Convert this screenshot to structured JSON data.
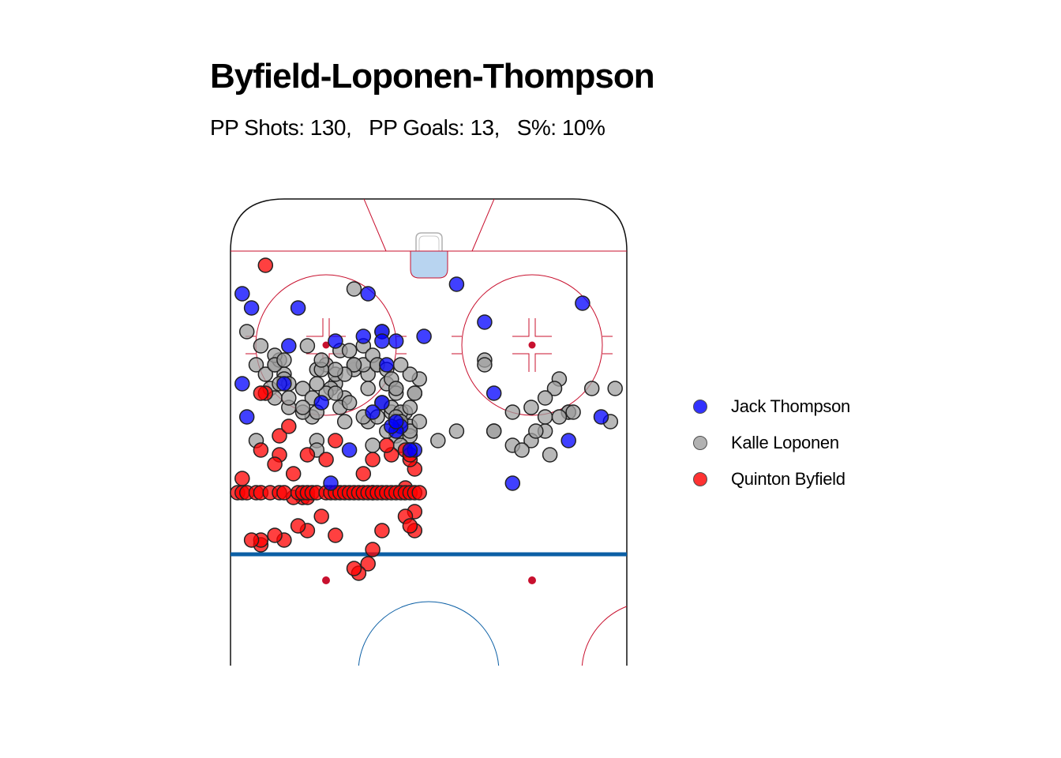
{
  "chart_data": {
    "type": "scatter",
    "title": "Byfield-Loponen-Thompson",
    "subtitle": "PP Shots: 130,   PP Goals: 13,   S%: 10%",
    "legend_position": "right",
    "grid": false,
    "series": [
      {
        "name": "Jack Thompson",
        "color": "#0000ff",
        "points": [
          [
            -27,
            67
          ],
          [
            -82,
            6
          ],
          [
            -28,
            -12
          ],
          [
            -38,
            -12
          ],
          [
            17,
            42
          ],
          [
            62,
            3
          ],
          [
            -7,
            -19
          ],
          [
            41,
            19
          ],
          [
            -43,
            -7
          ],
          [
            55,
            -2
          ],
          [
            43,
            18
          ],
          [
            33,
            -11
          ],
          [
            -10,
            -17
          ],
          [
            -14,
            -18
          ],
          [
            -40,
            -9
          ],
          [
            38,
            17
          ],
          [
            -30,
            -20
          ],
          [
            5,
            52
          ],
          [
            69,
            0
          ],
          [
            75,
            -19
          ],
          [
            49,
            10
          ],
          [
            60,
            -1
          ],
          [
            -1,
            -18
          ],
          [
            -9,
            -24
          ],
          [
            -10,
            -19
          ],
          [
            -23,
            -32
          ],
          [
            -77,
            -25
          ],
          [
            -10,
            -32
          ],
          [
            -39,
            -35
          ],
          [
            62,
            -30
          ],
          [
            -80,
            -12
          ],
          [
            14,
            -30
          ],
          [
            52,
            -25
          ],
          [
            44,
            -40
          ],
          [
            -40,
            -28
          ],
          [
            -12,
            -34
          ],
          [
            -6,
            -37
          ],
          [
            -7,
            -38
          ],
          [
            -8,
            -37
          ],
          [
            -7,
            -36
          ],
          [
            30,
            -40
          ],
          [
            48,
            -40
          ],
          [
            -3,
            -42
          ],
          [
            37,
            -35
          ],
          [
            51,
            -39
          ],
          [
            66,
            -37
          ],
          [
            -31,
            -28
          ],
          [
            -20,
            -19
          ],
          [
            -13,
            -9
          ],
          [
            18,
            5
          ],
          [
            12,
            -15
          ],
          [
            -4,
            -42
          ],
          [
            -21,
            -49
          ],
          [
            18,
            -49
          ],
          [
            -51,
            -43
          ],
          [
            20,
            40
          ],
          [
            6,
            -7
          ],
          [
            -17,
            -42
          ]
        ]
      },
      {
        "name": "Kalle Loponen",
        "color": "#a0a0a0",
        "points": [
          [
            -67,
            2
          ],
          [
            -78,
            -15
          ],
          [
            -66,
            10
          ],
          [
            -67,
            7
          ],
          [
            -66,
            0
          ],
          [
            -64,
            -3
          ],
          [
            -67,
            -16
          ],
          [
            -79,
            -16
          ],
          [
            -76,
            -15
          ],
          [
            -71,
            -18
          ],
          [
            -49,
            -31
          ],
          [
            -47,
            -30
          ],
          [
            -53,
            -32
          ],
          [
            -58,
            -20
          ],
          [
            -48,
            -16
          ],
          [
            -43,
            -16
          ],
          [
            -33,
            -24
          ],
          [
            -22,
            -24
          ],
          [
            -10,
            -17
          ],
          [
            -10,
            -32
          ],
          [
            -9,
            -28
          ],
          [
            -16,
            -25
          ],
          [
            -8,
            -34
          ],
          [
            -13,
            -29
          ],
          [
            -11,
            -24
          ],
          [
            -16,
            -24
          ],
          [
            -7,
            -29
          ],
          [
            -7,
            -30
          ],
          [
            -5,
            -34
          ],
          [
            -13,
            -36
          ],
          [
            -18,
            -31
          ],
          [
            -14,
            -35
          ],
          [
            -11,
            -35
          ],
          [
            -13,
            -26
          ],
          [
            -24,
            -25
          ],
          [
            -31,
            -26
          ],
          [
            -36,
            -20
          ],
          [
            -37,
            -24
          ],
          [
            -19,
            -33
          ],
          [
            -7,
            -39
          ],
          [
            -24,
            -40
          ],
          [
            -12,
            -41
          ],
          [
            2,
            -40
          ],
          [
            6,
            -38
          ],
          [
            14,
            -38
          ],
          [
            18,
            -41
          ],
          [
            22,
            -40
          ],
          [
            25,
            -38
          ],
          [
            28,
            -27
          ],
          [
            30,
            -34
          ],
          [
            35,
            -29
          ],
          [
            40,
            -29
          ],
          [
            56,
            -36
          ],
          [
            58,
            -33
          ],
          [
            46,
            -31
          ],
          [
            49,
            -20
          ],
          [
            12,
            -23
          ],
          [
            30,
            -34
          ],
          [
            20,
            -42
          ],
          [
            -2,
            -27
          ],
          [
            -24,
            -42
          ],
          [
            12,
            -24
          ],
          [
            39,
            -36
          ],
          [
            -8,
            -33
          ],
          [
            -6,
            -34
          ],
          [
            -39,
            -17
          ],
          [
            22,
            28
          ],
          [
            23,
            -38
          ],
          [
            -7,
            -36
          ],
          [
            -16,
            -8
          ],
          [
            32,
            21
          ],
          [
            -16,
            -24
          ],
          [
            -20,
            -28
          ],
          [
            -7,
            -35
          ],
          [
            -4,
            -37
          ],
          [
            -4,
            -39
          ],
          [
            -6,
            -41
          ],
          [
            -4,
            -38
          ],
          [
            26,
            -43
          ],
          [
            -25,
            -35
          ],
          [
            27,
            -29
          ],
          [
            -14,
            -24
          ],
          [
            -4,
            -26
          ],
          [
            -6,
            -24
          ],
          [
            25,
            -31
          ],
          [
            -37,
            -40
          ],
          [
            -30,
            -33
          ],
          [
            -18,
            -36
          ],
          [
            -17,
            -32
          ],
          [
            -21,
            -29
          ],
          [
            -31,
            -27
          ],
          [
            -34,
            -29
          ],
          [
            -33,
            -31
          ],
          [
            -32,
            -23
          ],
          [
            -33,
            -22
          ],
          [
            -2,
            -36
          ],
          [
            -3,
            -30
          ],
          [
            -6,
            -36
          ],
          [
            -9,
            -38
          ],
          [
            -4,
            -33
          ],
          [
            -3,
            -30
          ],
          [
            -20,
            -26
          ],
          [
            -27,
            -29
          ],
          [
            -35,
            -26
          ],
          [
            -27,
            -34
          ],
          [
            -22,
            -30
          ],
          [
            -20,
            -30
          ],
          [
            -24,
            -34
          ],
          [
            -42,
            -36
          ],
          [
            -44,
            -34
          ],
          [
            -48,
            -36
          ],
          [
            -50,
            -37
          ],
          [
            -52,
            -35
          ],
          [
            -54,
            -33
          ],
          [
            -53,
            -31
          ],
          [
            -47,
            -27
          ],
          [
            -42,
            -27
          ],
          [
            14,
            -38
          ],
          [
            18,
            -34
          ],
          [
            22,
            -33
          ],
          [
            25,
            -35
          ],
          [
            28,
            -35
          ],
          [
            31,
            -34
          ],
          [
            51,
            -33
          ],
          [
            60,
            -37
          ],
          [
            53,
            -33
          ],
          [
            57,
            -35
          ],
          [
            61,
            -37
          ],
          [
            -66,
            -8
          ],
          [
            -65,
            -1
          ],
          [
            -50,
            7
          ],
          [
            -56,
            2
          ],
          [
            -59,
            9
          ],
          [
            -61,
            -11
          ],
          [
            -62,
            -8
          ],
          [
            -16,
            -24
          ],
          [
            -18,
            -26
          ],
          [
            -20,
            -25
          ],
          [
            -23,
            -25
          ],
          [
            -24,
            -28
          ],
          [
            -25,
            -31
          ],
          [
            -27,
            -33
          ],
          [
            -30,
            -31
          ],
          [
            -30,
            -28
          ],
          [
            -32,
            -28
          ],
          [
            -33,
            -24
          ],
          [
            -31,
            -23
          ],
          [
            -26,
            -20
          ],
          [
            -23,
            -23
          ],
          [
            -19,
            -21
          ],
          [
            -17,
            -21
          ],
          [
            -14,
            -20
          ],
          [
            -12,
            -22
          ],
          [
            -11,
            -24
          ],
          [
            -9,
            -25
          ],
          [
            -8,
            -27
          ],
          [
            -7,
            -29
          ]
        ]
      },
      {
        "name": "Quinton Byfield",
        "color": "#ff0000",
        "points": [
          [
            -65,
            17
          ],
          [
            -42,
            23
          ],
          [
            -54,
            -1
          ],
          [
            -50,
            -8
          ],
          [
            -35,
            -3
          ],
          [
            -56,
            2
          ],
          [
            -59,
            9
          ],
          [
            -61,
            -11
          ],
          [
            -90,
            -11
          ],
          [
            -61,
            -21
          ],
          [
            -45,
            -31
          ],
          [
            -44,
            -27
          ],
          [
            -45,
            -21
          ],
          [
            -50,
            -16
          ],
          [
            -56,
            -22
          ],
          [
            -58,
            -25
          ],
          [
            -66,
            -30
          ],
          [
            -68,
            -33
          ],
          [
            -72,
            -40
          ],
          [
            -79,
            -41
          ],
          [
            -40,
            -48
          ],
          [
            -32,
            -39
          ],
          [
            -44,
            -45
          ],
          [
            -43,
            -47
          ],
          [
            -44,
            -46
          ],
          [
            -29,
            -47
          ],
          [
            -30,
            -37
          ],
          [
            -36,
            -42
          ],
          [
            -47,
            -40
          ],
          [
            -46,
            -38
          ],
          [
            -45,
            -40
          ],
          [
            -48,
            -42
          ],
          [
            -32,
            -43
          ],
          [
            -26,
            -43
          ],
          [
            -27,
            -52
          ],
          [
            -23,
            -56
          ],
          [
            -20,
            -60
          ],
          [
            -13,
            -66
          ],
          [
            -12,
            -63
          ],
          [
            -10,
            -59
          ],
          [
            -15,
            -68
          ],
          [
            -16,
            -67
          ],
          [
            -12,
            -51
          ],
          [
            -14,
            -47
          ],
          [
            -12,
            -44
          ],
          [
            -3,
            -59
          ],
          [
            -3,
            -55
          ],
          [
            -5,
            -56
          ],
          [
            -4,
            -58
          ],
          [
            -5,
            -50
          ],
          [
            -3,
            -46
          ],
          [
            -4,
            -44
          ],
          [
            -8,
            -43
          ],
          [
            -9,
            -41
          ],
          [
            -5,
            -42
          ],
          [
            -4,
            -43
          ],
          [
            -35,
            -30
          ],
          [
            -36,
            -30
          ],
          [
            -44,
            -44
          ],
          [
            -33,
            -45
          ],
          [
            -20,
            -40
          ],
          [
            -22,
            -44
          ],
          [
            -43,
            -49
          ],
          [
            -44,
            -48
          ],
          [
            -29,
            -52
          ],
          [
            -26,
            -52
          ],
          [
            -26,
            -59
          ],
          [
            -28,
            -58
          ],
          [
            -31,
            -61
          ],
          [
            -33,
            -60
          ],
          [
            -36,
            -62
          ],
          [
            -36,
            -61
          ],
          [
            -38,
            -61
          ],
          [
            -43,
            -60
          ],
          [
            -45,
            -60
          ],
          [
            -47,
            -61
          ],
          [
            -51,
            -62
          ],
          [
            -51,
            -59
          ],
          [
            -51,
            -51
          ],
          [
            -49,
            -51
          ],
          [
            -46,
            -51
          ],
          [
            -43,
            -51
          ],
          [
            -41,
            -51
          ],
          [
            -40,
            -51
          ],
          [
            -39,
            -51
          ],
          [
            -37,
            -51
          ],
          [
            -36,
            -51
          ],
          [
            -34,
            -51
          ],
          [
            -32,
            -51
          ],
          [
            -31,
            -51
          ],
          [
            -28,
            -51
          ],
          [
            -27,
            -51
          ],
          [
            -26,
            -51
          ],
          [
            -25,
            -51
          ],
          [
            -24,
            -51
          ],
          [
            -22,
            -51
          ],
          [
            -21,
            -51
          ],
          [
            -20,
            -51
          ],
          [
            -19,
            -51
          ],
          [
            -18,
            -51
          ],
          [
            -17,
            -51
          ],
          [
            -16,
            -51
          ],
          [
            -15,
            -51
          ],
          [
            -14,
            -51
          ],
          [
            -13,
            -51
          ],
          [
            -12,
            -51
          ],
          [
            -11,
            -51
          ],
          [
            -10,
            -51
          ],
          [
            -9,
            -51
          ],
          [
            -8,
            -51
          ],
          [
            -7,
            -51
          ],
          [
            -6,
            -51
          ],
          [
            -5,
            -51
          ],
          [
            -4,
            -51
          ],
          [
            -3,
            -51
          ],
          [
            -2,
            -51
          ]
        ]
      }
    ]
  }
}
